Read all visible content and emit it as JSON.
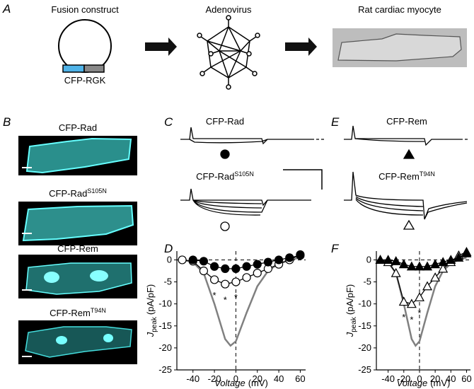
{
  "figure": {
    "panel_a": {
      "letter": "A",
      "labels": [
        "Fusion construct",
        "Adenovirus",
        "Rat cardiac myocyte"
      ],
      "construct": "CFP-RGK"
    },
    "panel_b": {
      "letter": "B",
      "labels": [
        {
          "text": "CFP-Rad",
          "sup": null
        },
        {
          "text": "CFP-Rad",
          "sup": "S105N"
        },
        {
          "text": "CFP-Rem",
          "sup": null
        },
        {
          "text": "CFP-Rem",
          "sup": "T94N"
        }
      ]
    },
    "panel_c": {
      "letter": "C",
      "labels": [
        {
          "text": "CFP-Rad",
          "sup": null
        },
        {
          "text": "CFP-Rad",
          "sup": "S105N"
        }
      ]
    },
    "panel_e": {
      "letter": "E",
      "labels": [
        {
          "text": "CFP-Rem",
          "sup": null
        },
        {
          "text": "CFP-Rem",
          "sup": "T94N"
        }
      ]
    }
  },
  "chart_data": [
    {
      "type": "line",
      "letter": "D",
      "x_label": {
        "main": "Voltage",
        "unit": "(mV)"
      },
      "y_label": {
        "main": "J",
        "sub": "peak",
        "unit": "(pA/pF)"
      },
      "xlim": [
        -55,
        65
      ],
      "ylim": [
        -25,
        2
      ],
      "xticks": [
        -40,
        -20,
        0,
        20,
        40,
        60
      ],
      "yticks": [
        0,
        -5,
        -10,
        -15,
        -20,
        -25
      ],
      "series": [
        {
          "style": "curve",
          "color": "#808080",
          "x": [
            -50,
            -40,
            -30,
            -20,
            -10,
            -5,
            0,
            10,
            20,
            30,
            40,
            50,
            60
          ],
          "values": [
            0,
            -0.5,
            -3,
            -10,
            -18,
            -19.5,
            -18.5,
            -12,
            -6,
            -2.5,
            -0.8,
            0,
            0.5
          ]
        },
        {
          "style": "open-circle",
          "color": "#000000",
          "x": [
            -50,
            -40,
            -30,
            -20,
            -10,
            0,
            10,
            20,
            30,
            40,
            50,
            60
          ],
          "values": [
            0,
            -0.3,
            -2.5,
            -4.5,
            -5.5,
            -5,
            -4,
            -3,
            -2,
            -1,
            0,
            1.2
          ]
        },
        {
          "style": "filled-circle",
          "color": "#000000",
          "x": [
            -40,
            -30,
            -20,
            -10,
            0,
            10,
            20,
            30,
            40,
            50,
            60
          ],
          "values": [
            0,
            -0.3,
            -1.5,
            -2,
            -2,
            -1.5,
            -1,
            -0.5,
            0,
            0.5,
            1
          ]
        }
      ],
      "annotations": [
        {
          "text": "*",
          "x": -20,
          "y": -7.5
        },
        {
          "text": "*",
          "x": -10,
          "y": -8.5
        },
        {
          "text": "*",
          "x": 0,
          "y": -8
        }
      ]
    },
    {
      "type": "line",
      "letter": "F",
      "x_label": {
        "main": "Voltage",
        "unit": "(mV)"
      },
      "y_label": {
        "main": "J",
        "sub": "peak",
        "unit": "(pA/pF)"
      },
      "xlim": [
        -55,
        65
      ],
      "ylim": [
        -25,
        2
      ],
      "xticks": [
        -40,
        -20,
        0,
        20,
        40,
        60
      ],
      "yticks": [
        0,
        -5,
        -10,
        -15,
        -20,
        -25
      ],
      "series": [
        {
          "style": "curve",
          "color": "#808080",
          "x": [
            -50,
            -40,
            -30,
            -20,
            -10,
            -5,
            0,
            10,
            20,
            30,
            40,
            50,
            60
          ],
          "values": [
            0,
            -0.5,
            -3,
            -10,
            -18,
            -19.5,
            -18.5,
            -12,
            -6,
            -2.5,
            -0.8,
            0,
            0.5
          ]
        },
        {
          "style": "open-triangle",
          "color": "#000000",
          "x": [
            -50,
            -40,
            -30,
            -20,
            -10,
            0,
            10,
            20,
            30,
            40,
            50,
            60
          ],
          "values": [
            0,
            -0.5,
            -3,
            -9.5,
            -10,
            -8.5,
            -6,
            -4,
            -2,
            -0.5,
            1,
            1.8
          ]
        },
        {
          "style": "filled-triangle",
          "color": "#000000",
          "x": [
            -50,
            -40,
            -30,
            -20,
            -10,
            0,
            10,
            20,
            30,
            40,
            50,
            60
          ],
          "values": [
            0,
            0,
            -0.3,
            -1,
            -1.5,
            -1.5,
            -1.5,
            -1,
            -0.5,
            0,
            0.5,
            1.5
          ]
        }
      ],
      "annotations": [
        {
          "text": "*",
          "x": -20,
          "y": -12.5
        },
        {
          "text": "*",
          "x": -10,
          "y": -13
        },
        {
          "text": "*",
          "x": 0,
          "y": -11.5
        }
      ]
    }
  ]
}
